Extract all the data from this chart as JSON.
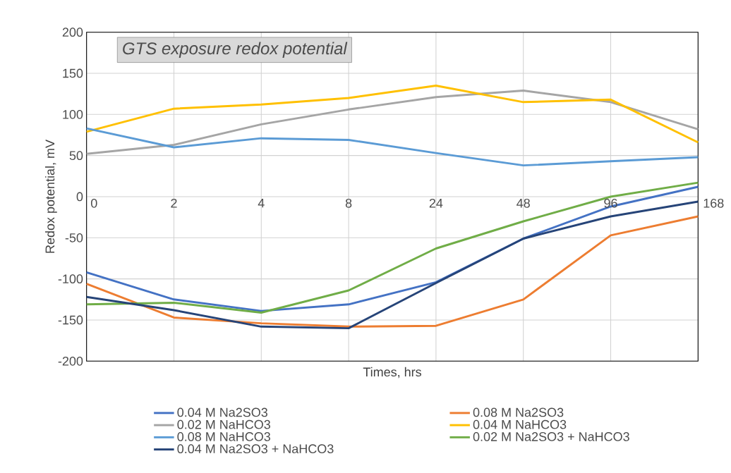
{
  "chart_data": {
    "type": "line",
    "title": "GTS exposure redox potential",
    "xlabel": "Times, hrs",
    "ylabel": "Redox potential, mV",
    "categories": [
      "0",
      "2",
      "4",
      "8",
      "24",
      "48",
      "96",
      "168"
    ],
    "ylim": [
      -200,
      200
    ],
    "yticks": [
      -200,
      -150,
      -100,
      -50,
      0,
      50,
      100,
      150,
      200
    ],
    "grid": true,
    "legend": "bottom",
    "marker": "none",
    "line_style": "solid",
    "series": [
      {
        "name": "0.04 M Na2SO3",
        "color": "#4472c4",
        "values": [
          -92,
          -125,
          -139,
          -131,
          -104,
          -51,
          -12,
          12
        ]
      },
      {
        "name": "0.08 M Na2SO3",
        "color": "#ed7d31",
        "values": [
          -106,
          -147,
          -154,
          -158,
          -157,
          -125,
          -47,
          -24
        ]
      },
      {
        "name": "0.02 M NaHCO3",
        "color": "#a5a5a5",
        "values": [
          52,
          63,
          88,
          106,
          121,
          129,
          115,
          82
        ]
      },
      {
        "name": "0.04 M NaHCO3",
        "color": "#ffc000",
        "values": [
          79,
          107,
          112,
          120,
          135,
          115,
          118,
          66
        ]
      },
      {
        "name": "0.08 M NaHCO3",
        "color": "#5b9bd5",
        "values": [
          83,
          60,
          71,
          69,
          53,
          38,
          43,
          48
        ]
      },
      {
        "name": "0.02 M Na2SO3 + NaHCO3",
        "color": "#70ad47",
        "values": [
          -131,
          -129,
          -141,
          -114,
          -63,
          -30,
          0,
          17
        ]
      },
      {
        "name": "0.04 M Na2SO3 + NaHCO3",
        "color": "#264478",
        "values": [
          -122,
          -138,
          -158,
          -160,
          -105,
          -51,
          -24,
          -6
        ]
      }
    ]
  }
}
